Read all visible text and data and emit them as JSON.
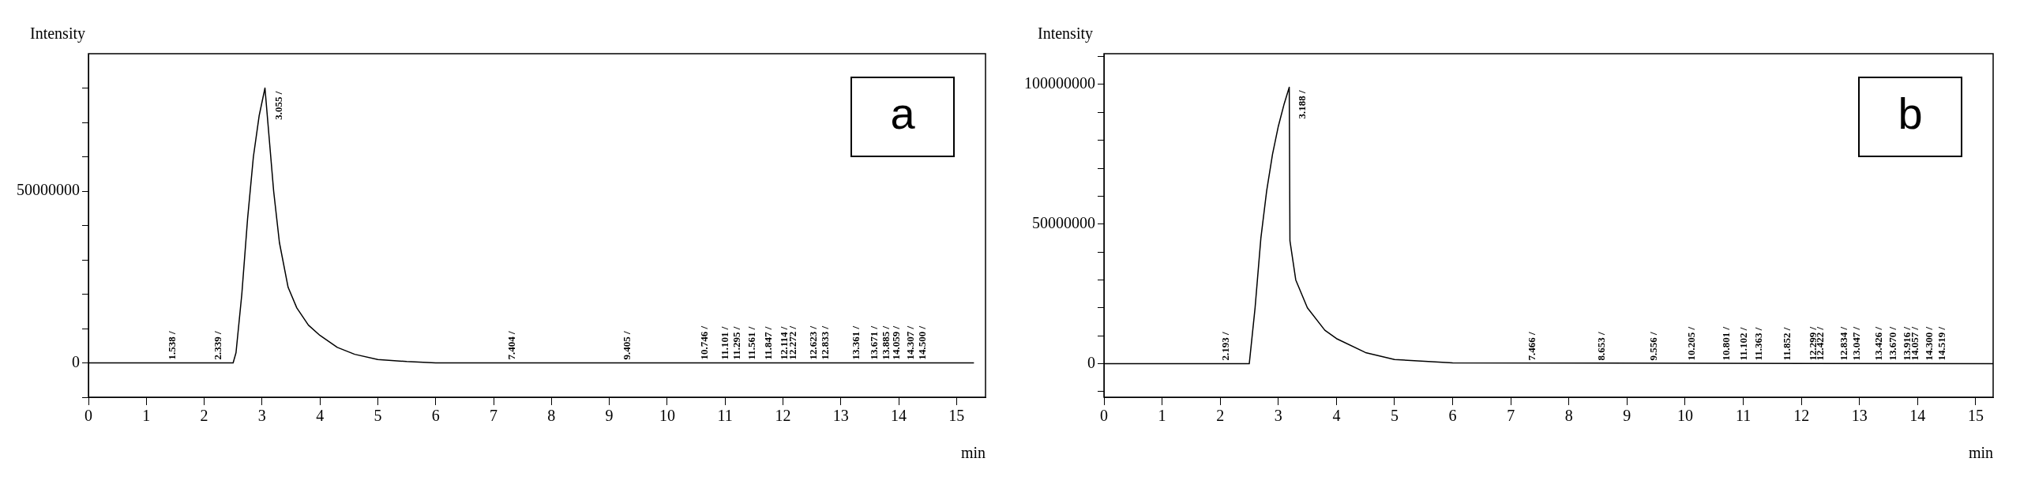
{
  "chart_data": [
    {
      "type": "line",
      "title": "a",
      "xlabel": "min",
      "ylabel": "Intensity",
      "xlim": [
        0,
        15.5
      ],
      "ylim": [
        -10000000,
        90000000
      ],
      "xticks": [
        0,
        1,
        2,
        3,
        4,
        5,
        6,
        7,
        8,
        9,
        10,
        11,
        12,
        13,
        14,
        15
      ],
      "yticks": [
        {
          "value": -10000000,
          "label": null
        },
        0,
        {
          "value": 10000000,
          "label": null
        },
        {
          "value": 20000000,
          "label": null
        },
        {
          "value": 30000000,
          "label": null
        },
        {
          "value": 40000000,
          "label": null
        },
        50000000,
        {
          "value": 60000000,
          "label": null
        },
        {
          "value": 70000000,
          "label": null
        },
        {
          "value": 80000000,
          "label": null
        }
      ],
      "marker": "none",
      "series": [
        {
          "color": "#000000",
          "x": [
            0,
            1.5,
            2.5,
            2.55,
            2.65,
            2.75,
            2.85,
            2.95,
            3.05,
            3.1,
            3.2,
            3.3,
            3.45,
            3.6,
            3.8,
            4.0,
            4.3,
            4.6,
            5.0,
            5.5,
            6.0,
            15.3
          ],
          "values": [
            0,
            0,
            0,
            3000000,
            20000000,
            42000000,
            60000000,
            72000000,
            80000000,
            70000000,
            50000000,
            35000000,
            22000000,
            16000000,
            11000000,
            8000000,
            4500000,
            2500000,
            1000000,
            400000,
            0,
            0
          ]
        }
      ],
      "annotations": [
        {
          "text": "1.538 /",
          "x": 1.538,
          "y": 0
        },
        {
          "text": "2.339 /",
          "x": 2.339,
          "y": 0
        },
        {
          "text": "3.055 /",
          "x": 3.055,
          "y": 80000000
        },
        {
          "text": "7.404 /",
          "x": 7.404,
          "y": 0
        },
        {
          "text": "9.405 /",
          "x": 9.405,
          "y": 0
        },
        {
          "text": "10.746 /",
          "x": 10.746,
          "y": 0
        },
        {
          "text": "11.101 /",
          "x": 11.101,
          "y": 0
        },
        {
          "text": "11.295 /",
          "x": 11.295,
          "y": 0
        },
        {
          "text": "11.561 /",
          "x": 11.561,
          "y": 0
        },
        {
          "text": "11.847 /",
          "x": 11.847,
          "y": 0
        },
        {
          "text": "12.114 /",
          "x": 12.114,
          "y": 0
        },
        {
          "text": "12.272 /",
          "x": 12.272,
          "y": 0
        },
        {
          "text": "12.623 /",
          "x": 12.623,
          "y": 0
        },
        {
          "text": "12.833 /",
          "x": 12.833,
          "y": 0
        },
        {
          "text": "13.361 /",
          "x": 13.361,
          "y": 0
        },
        {
          "text": "13.671 /",
          "x": 13.671,
          "y": 0
        },
        {
          "text": "13.885 /",
          "x": 13.885,
          "y": 0
        },
        {
          "text": "14.059 /",
          "x": 14.059,
          "y": 0
        },
        {
          "text": "14.307 /",
          "x": 14.307,
          "y": 0
        },
        {
          "text": "14.500 /",
          "x": 14.5,
          "y": 0
        }
      ]
    },
    {
      "type": "line",
      "title": "b",
      "xlabel": "min",
      "ylabel": "Intensity",
      "xlim": [
        0,
        15.3
      ],
      "ylim": [
        -12000000,
        111000000
      ],
      "xticks": [
        0,
        1,
        2,
        3,
        4,
        5,
        6,
        7,
        8,
        9,
        10,
        11,
        12,
        13,
        14,
        15
      ],
      "yticks": [
        {
          "value": -10000000,
          "label": null
        },
        0,
        {
          "value": 10000000,
          "label": null
        },
        {
          "value": 20000000,
          "label": null
        },
        {
          "value": 30000000,
          "label": null
        },
        {
          "value": 40000000,
          "label": null
        },
        50000000,
        {
          "value": 60000000,
          "label": null
        },
        {
          "value": 70000000,
          "label": null
        },
        {
          "value": 80000000,
          "label": null
        },
        {
          "value": 90000000,
          "label": null
        },
        100000000,
        {
          "value": 110000000,
          "label": null
        }
      ],
      "marker": "none",
      "series": [
        {
          "color": "#000000",
          "x": [
            0,
            2.1,
            2.5,
            2.6,
            2.7,
            2.8,
            2.9,
            3.0,
            3.1,
            3.188,
            3.2,
            3.3,
            3.5,
            3.8,
            4.0,
            4.5,
            5.0,
            6.0,
            15.3
          ],
          "values": [
            0,
            0,
            0,
            20000000,
            45000000,
            62000000,
            75000000,
            85000000,
            93000000,
            99000000,
            44000000,
            30000000,
            20000000,
            12000000,
            9000000,
            4000000,
            1500000,
            300000,
            0
          ]
        }
      ],
      "annotations": [
        {
          "text": "2.193 /",
          "x": 2.193,
          "y": 0
        },
        {
          "text": "3.188 /",
          "x": 3.188,
          "y": 99000000
        },
        {
          "text": "7.466 /",
          "x": 7.466,
          "y": 0
        },
        {
          "text": "8.653 /",
          "x": 8.653,
          "y": 0
        },
        {
          "text": "9.556 /",
          "x": 9.556,
          "y": 0
        },
        {
          "text": "10.205 /",
          "x": 10.205,
          "y": 0
        },
        {
          "text": "10.801 /",
          "x": 10.801,
          "y": 0
        },
        {
          "text": "11.102 /",
          "x": 11.102,
          "y": 0
        },
        {
          "text": "11.363 /",
          "x": 11.363,
          "y": 0
        },
        {
          "text": "11.852 /",
          "x": 11.852,
          "y": 0
        },
        {
          "text": "12.299 /",
          "x": 12.299,
          "y": 0
        },
        {
          "text": "12.422 /",
          "x": 12.422,
          "y": 0
        },
        {
          "text": "12.834 /",
          "x": 12.834,
          "y": 0
        },
        {
          "text": "13.047 /",
          "x": 13.047,
          "y": 0
        },
        {
          "text": "13.426 /",
          "x": 13.426,
          "y": 0
        },
        {
          "text": "13.670 /",
          "x": 13.67,
          "y": 0
        },
        {
          "text": "13.916 /",
          "x": 13.916,
          "y": 0
        },
        {
          "text": "14.057 /",
          "x": 14.057,
          "y": 0
        },
        {
          "text": "14.300 /",
          "x": 14.3,
          "y": 0
        },
        {
          "text": "14.519 /",
          "x": 14.519,
          "y": 0
        }
      ]
    }
  ]
}
